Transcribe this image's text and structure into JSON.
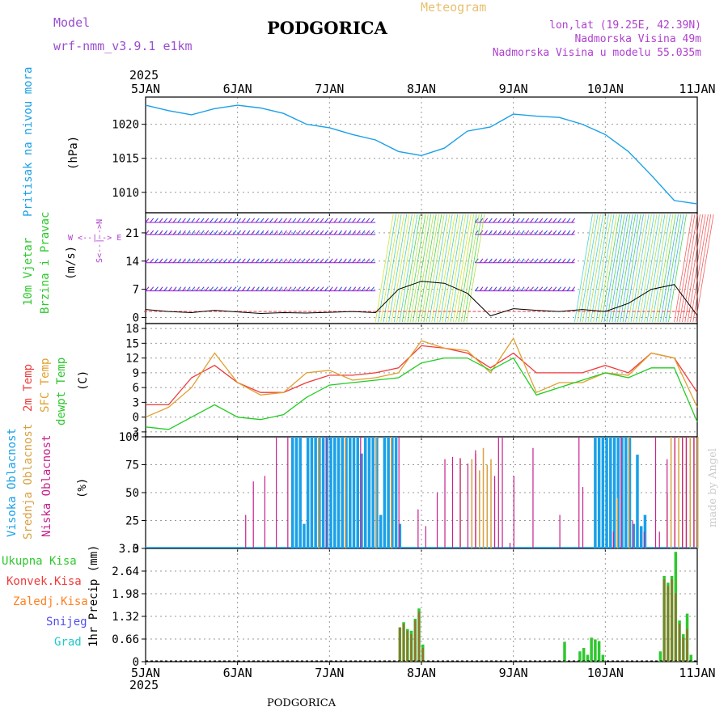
{
  "header": {
    "model_label": "Model",
    "model_name": "wrf-nmm_v3.9.1 e1km",
    "title": "PODGORICA",
    "meteogram": "Meteogram",
    "lonlat": "lon,lat (19.25E, 42.39N)",
    "altitude": "Nadmorska Visina 49m",
    "model_altitude": "Nadmorska Visina u modelu 55.035m",
    "year_top": "2025",
    "year_bottom": "2025",
    "footer": "PODGORICA",
    "credit": "made by Angel"
  },
  "colors": {
    "pressure": "#1aa0e8",
    "temp2m": "#f03a3a",
    "sfc": "#e0a030",
    "dewpt": "#22cc22",
    "model": "#9a4fd0",
    "wind_purple": "#8a1ad0",
    "wind_blue": "#2050e8",
    "high_cloud": "#1aa0e8",
    "mid_cloud": "#d9a040",
    "low_cloud": "#c8208e",
    "total_precip": "#2ec82e",
    "conv_precip": "#e83030",
    "frozen": "#ff8020",
    "snow": "#5050f0",
    "grad": "#20c8c8"
  },
  "labels": {
    "pressure": [
      "Pritisak na nivou mora",
      "(hPa)"
    ],
    "wind": [
      "10m Vjetar",
      "Brzina i Pravac",
      "(m/s)"
    ],
    "compass": [
      "W <--|--> E",
      "S<--|-->N"
    ],
    "temp": [
      "2m Temp",
      "SFC Temp",
      "dewpt Temp",
      "(C)"
    ],
    "cloud": [
      "Visoka Oblacnost",
      "Srednja Oblacnost",
      "Niska Oblacnost",
      "(%)"
    ],
    "precip": [
      "Ukupna Kisa",
      "Konvek.Kisa",
      "Zaledj.Kisa",
      "Snijeg",
      "Grad",
      "1hr Precip (mm)"
    ]
  },
  "chart_data": [
    {
      "type": "line",
      "panel": "pressure",
      "x_ticks": [
        "5JAN",
        "6JAN",
        "7JAN",
        "8JAN",
        "9JAN",
        "10JAN",
        "11JAN"
      ],
      "y_ticks": [
        1010,
        1015,
        1020
      ],
      "ylim": [
        1007,
        1024
      ],
      "grid": true,
      "x_hours": [
        0,
        6,
        12,
        18,
        24,
        30,
        36,
        42,
        48,
        54,
        60,
        66,
        72,
        78,
        84,
        90,
        96,
        102,
        108,
        114,
        120,
        126,
        132,
        138,
        144
      ],
      "series": [
        {
          "values": [
            1022.8,
            1022,
            1021.4,
            1022.3,
            1022.8,
            1022.4,
            1021.6,
            1020,
            1019.5,
            1018.5,
            1017.7,
            1016,
            1015.4,
            1016.5,
            1019,
            1019.6,
            1021.5,
            1021.2,
            1021,
            1020,
            1018.5,
            1016,
            1012.5,
            1008.8,
            1008.3
          ]
        }
      ]
    },
    {
      "type": "line",
      "panel": "wind",
      "y_ticks": [
        0,
        7,
        14,
        21
      ],
      "ylim": [
        -1.5,
        26
      ],
      "grid": true,
      "x_hours": [
        0,
        6,
        12,
        18,
        24,
        30,
        36,
        42,
        48,
        54,
        60,
        66,
        72,
        78,
        84,
        90,
        96,
        102,
        108,
        114,
        120,
        126,
        132,
        138,
        144
      ],
      "series": [
        {
          "values": [
            2,
            1.5,
            1.2,
            1.8,
            1.4,
            1,
            1.2,
            1.1,
            1.3,
            1.5,
            1.2,
            7,
            9,
            8.5,
            6,
            0.4,
            2.2,
            1.8,
            1.5,
            2,
            1.5,
            3.5,
            7,
            8.2,
            0.5
          ]
        }
      ]
    },
    {
      "type": "line",
      "panel": "temperature",
      "y_ticks": [
        -3,
        0,
        3,
        6,
        9,
        12,
        15,
        18
      ],
      "ylim": [
        -4,
        19
      ],
      "grid": true,
      "x_hours": [
        0,
        6,
        12,
        18,
        24,
        30,
        36,
        42,
        48,
        54,
        60,
        66,
        72,
        78,
        84,
        90,
        96,
        102,
        108,
        114,
        120,
        126,
        132,
        138,
        144
      ],
      "series": [
        {
          "name": "2m Temp",
          "values": [
            2.5,
            2.5,
            8,
            10.5,
            7,
            5,
            5,
            7,
            8.5,
            8.5,
            9,
            10,
            14.5,
            14,
            13,
            10,
            13,
            9,
            9,
            9,
            10.5,
            9,
            13,
            12,
            5
          ]
        },
        {
          "name": "SFC Temp",
          "values": [
            0,
            2,
            6,
            13,
            7,
            4.5,
            5,
            9,
            9.5,
            7.5,
            8,
            9,
            15.5,
            14,
            13.5,
            9,
            16,
            5,
            7,
            7,
            9,
            8.5,
            13,
            12,
            2
          ]
        },
        {
          "name": "dewpt Temp",
          "values": [
            -2,
            -2.5,
            0,
            2.5,
            0,
            -0.5,
            0.5,
            4,
            6.5,
            7,
            7.5,
            8,
            11,
            12,
            12,
            9.5,
            12,
            4.5,
            6,
            7.5,
            9,
            8,
            10,
            10,
            -1
          ]
        }
      ]
    },
    {
      "type": "bar",
      "panel": "cloud",
      "y_ticks": [
        0,
        25,
        50,
        75,
        100
      ],
      "ylim": [
        0,
        100
      ],
      "grid": true,
      "series": [
        {
          "name": "Visoka Oblacnost",
          "hours": [
            38,
            39,
            40,
            41,
            42,
            43,
            44,
            45,
            46,
            47,
            48,
            49,
            50,
            51,
            52,
            53,
            54,
            55,
            56,
            57,
            58,
            59,
            60,
            61,
            62,
            63,
            64,
            65,
            66,
            117,
            118,
            119,
            120,
            121,
            122,
            123,
            124,
            125,
            126,
            127,
            128,
            129,
            130
          ],
          "values": [
            100,
            100,
            100,
            22,
            100,
            100,
            100,
            100,
            100,
            100,
            100,
            100,
            100,
            100,
            100,
            100,
            100,
            100,
            85,
            100,
            100,
            100,
            100,
            30,
            100,
            100,
            100,
            100,
            22,
            100,
            100,
            100,
            100,
            100,
            100,
            100,
            100,
            100,
            100,
            22,
            84,
            20,
            30
          ]
        },
        {
          "name": "Srednja Oblacnost",
          "hours": [
            45,
            52,
            60,
            64,
            82,
            85,
            86,
            87,
            88,
            89,
            90,
            123,
            126,
            136,
            137,
            138,
            139,
            140,
            141,
            142,
            143,
            144
          ],
          "values": [
            100,
            100,
            100,
            100,
            80,
            80,
            85,
            70,
            90,
            75,
            80,
            45,
            100,
            50,
            100,
            100,
            100,
            100,
            100,
            100,
            100,
            100
          ]
        },
        {
          "name": "Niska Oblacnost",
          "hours": [
            26,
            28,
            31,
            34,
            37,
            47,
            56,
            66,
            71,
            73,
            76,
            78,
            80,
            82,
            84,
            86,
            91,
            92,
            93,
            95,
            96,
            101,
            108,
            113,
            114,
            122,
            124,
            127,
            130,
            133,
            134,
            136,
            138,
            140,
            141,
            143
          ],
          "values": [
            30,
            60,
            65,
            100,
            100,
            100,
            100,
            100,
            35,
            20,
            50,
            80,
            82,
            81,
            76,
            88,
            65,
            100,
            100,
            5,
            65,
            90,
            30,
            100,
            55,
            15,
            100,
            25,
            15,
            100,
            15,
            80,
            100,
            100,
            100,
            100
          ]
        }
      ]
    },
    {
      "type": "bar",
      "panel": "precipitation",
      "y_ticks": [
        0,
        0.66,
        1.32,
        1.98,
        2.64,
        3.3
      ],
      "ylim": [
        0,
        3.3
      ],
      "grid": true,
      "series": [
        {
          "name": "Ukupna Kisa",
          "hours": [
            66,
            67,
            68,
            69,
            70,
            71,
            72,
            109,
            113,
            114,
            115,
            116,
            117,
            118,
            119,
            134,
            135,
            136,
            137,
            138,
            139,
            140,
            141,
            142
          ],
          "values": [
            1.0,
            1.15,
            0.95,
            0.9,
            1.25,
            1.55,
            0.5,
            0.58,
            0.3,
            0.4,
            0.2,
            0.7,
            0.65,
            0.6,
            0.2,
            0.3,
            2.5,
            2.3,
            2.5,
            3.2,
            1.2,
            0.8,
            1.4,
            0.2
          ]
        },
        {
          "name": "Konvek.Kisa",
          "hours": [
            66,
            67,
            68,
            69,
            70,
            71,
            72,
            135,
            136,
            137,
            138,
            139,
            140,
            141
          ],
          "values": [
            1.0,
            1.1,
            0.9,
            0.8,
            1.2,
            1.45,
            0.4,
            2.4,
            2.2,
            2.4,
            2.0,
            1.1,
            0.7,
            0.95
          ]
        }
      ]
    }
  ]
}
